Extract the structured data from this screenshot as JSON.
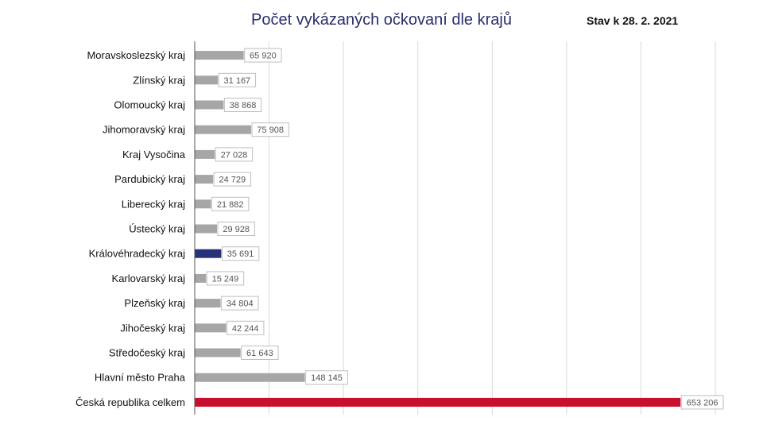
{
  "chart_data": {
    "type": "bar",
    "orientation": "horizontal",
    "title": "Počet vykázaných očkovaní dle krajů",
    "subtitle": "Stav k 28. 2. 2021",
    "grid": true,
    "xlim": [
      0,
      700000
    ],
    "categories": [
      "Moravskoslezský kraj",
      "Zlínský kraj",
      "Olomoucký kraj",
      "Jihomoravský kraj",
      "Kraj Vysočina",
      "Pardubický kraj",
      "Liberecký kraj",
      "Ústecký kraj",
      "Královéhradecký kraj",
      "Karlovarský kraj",
      "Plzeňský kraj",
      "Jihočeský kraj",
      "Středočeský kraj",
      "Hlavní město Praha",
      "Česká republika celkem"
    ],
    "values": [
      65920,
      31167,
      38868,
      75908,
      27028,
      24729,
      21882,
      29928,
      35691,
      15249,
      34804,
      42244,
      61643,
      148145,
      653206
    ],
    "value_labels": [
      "65 920",
      "31 167",
      "38 868",
      "75 908",
      "27 028",
      "24 729",
      "21 882",
      "29 928",
      "35 691",
      "15 249",
      "34 804",
      "42 244",
      "61 643",
      "148 145",
      "653 206"
    ],
    "highlight": {
      "Královéhradecký kraj": "#27317a",
      "Česká republika celkem": "#c8102e"
    },
    "bar_color": "#a6a6a6",
    "gridline_color": "#d9d9d9"
  }
}
